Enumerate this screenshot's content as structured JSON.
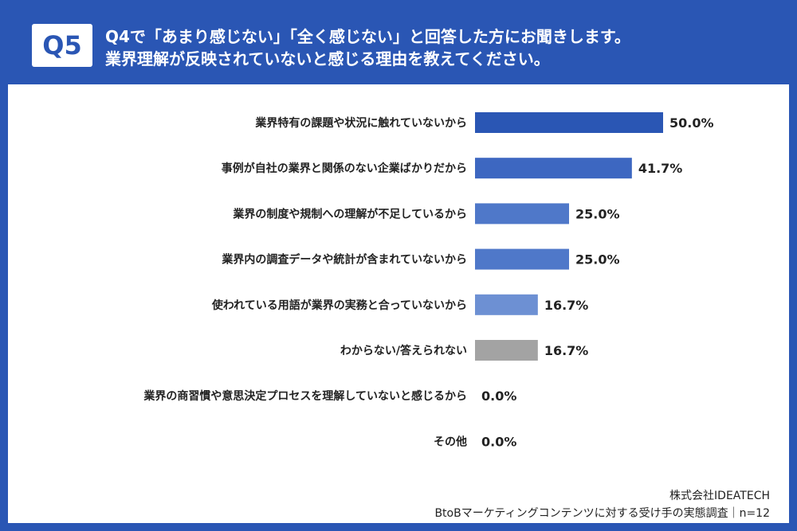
{
  "header": {
    "badge": "Q5",
    "title_line1": "Q4で「あまり感じない」「全く感じない」と回答した方にお聞きします。",
    "title_line2": "業界理解が反映されていないと感じる理由を教えてください。"
  },
  "footer": {
    "company": "株式会社IDEATECH",
    "source": "BtoBマーケティングコンテンツに対する受け手の実態調査｜n=12"
  },
  "colors": {
    "frame": "#2a56b4",
    "bar_shades": [
      "#2a56b4",
      "#3d67c1",
      "#4f78c9",
      "#4f78c9",
      "#6d90d3",
      "#a3a3a3",
      "#4f78c9",
      "#4f78c9"
    ]
  },
  "chart_data": {
    "type": "bar",
    "orientation": "horizontal",
    "unit": "%",
    "xlim": [
      0,
      100
    ],
    "categories": [
      "業界特有の課題や状況に触れていないから",
      "事例が自社の業界と関係のない企業ばかりだから",
      "業界の制度や規制への理解が不足しているから",
      "業界内の調査データや統計が含まれていないから",
      "使われている用語が業界の実務と合っていないから",
      "わからない/答えられない",
      "業界の商習慣や意思決定プロセスを理解していないと感じるから",
      "その他"
    ],
    "values": [
      50.0,
      41.7,
      25.0,
      25.0,
      16.7,
      16.7,
      0.0,
      0.0
    ],
    "value_labels": [
      "50.0%",
      "41.7%",
      "25.0%",
      "25.0%",
      "16.7%",
      "16.7%",
      "0.0%",
      "0.0%"
    ]
  }
}
